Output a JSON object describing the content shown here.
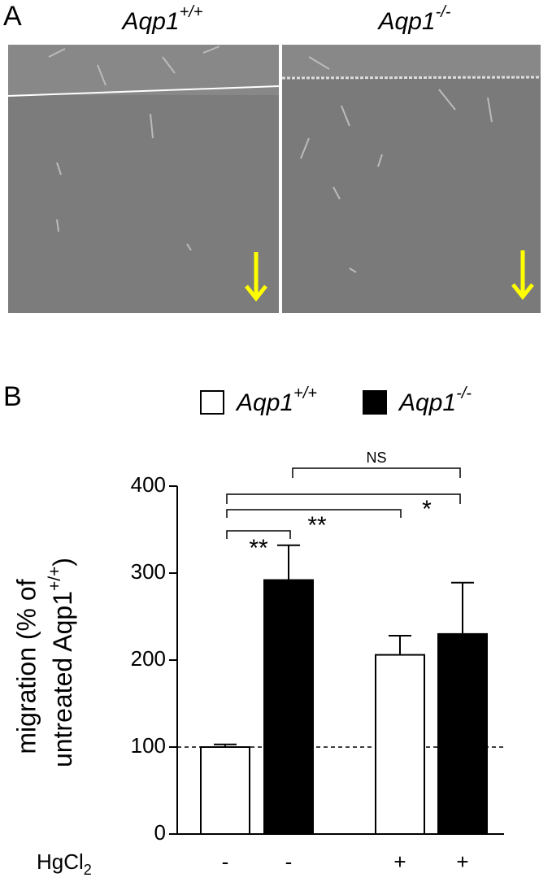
{
  "panels": {
    "a": "A",
    "b": "B"
  },
  "images": [
    {
      "title": "Aqp1",
      "title_sup": "+/+"
    },
    {
      "title": "Aqp1",
      "title_sup": "-/-"
    }
  ],
  "chart_data": {
    "type": "bar",
    "categories": [
      "-",
      "-",
      "+",
      "+"
    ],
    "x_label": "HgCl",
    "x_label_sub": "2",
    "y_label_line1": "migration (% of",
    "y_label_line2": "untreated Aqp1",
    "y_label_line2_sup": "+/+",
    "y_label_line2_end": ")",
    "series": [
      {
        "name": "Aqp1",
        "name_sup": "+/+",
        "color": "#ffffff",
        "values": [
          100,
          null,
          206,
          null
        ],
        "errors": [
          3,
          null,
          22,
          null
        ]
      },
      {
        "name": "Aqp1",
        "name_sup": "-/-",
        "color": "#000000",
        "values": [
          null,
          292,
          null,
          230
        ],
        "errors": [
          null,
          40,
          null,
          59
        ]
      }
    ],
    "ylim": [
      0,
      400
    ],
    "yticks": [
      0,
      100,
      200,
      300,
      400
    ],
    "reference_line": 100,
    "annotations": [
      {
        "text": "NS",
        "from": 1,
        "to": 3
      },
      {
        "text": "*",
        "from": 0,
        "to": 3
      },
      {
        "text": "**",
        "from": 0,
        "to": 2
      },
      {
        "text": "**",
        "from": 0,
        "to": 1
      }
    ]
  }
}
